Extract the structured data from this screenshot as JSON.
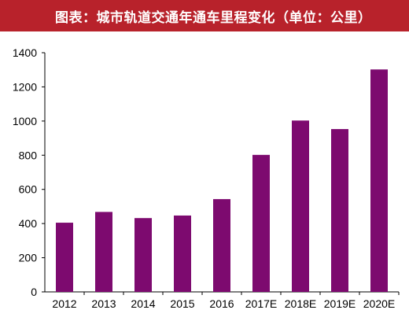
{
  "header": {
    "title": "图表：城市轨道交通年通车里程变化（单位：公里）",
    "background_color": "#b8222b",
    "text_color": "#ffffff"
  },
  "chart_data": {
    "type": "bar",
    "title": "图表：城市轨道交通年通车里程变化（单位：公里）",
    "xlabel": "",
    "ylabel": "",
    "categories": [
      "2012",
      "2013",
      "2014",
      "2015",
      "2016",
      "2017E",
      "2018E",
      "2019E",
      "2020E"
    ],
    "series": [
      {
        "values": [
          405,
          468,
          432,
          447,
          543,
          802,
          1003,
          953,
          1302
        ],
        "color": "#7d0a6f"
      }
    ],
    "ylim": [
      0,
      1400
    ],
    "yticks": [
      0,
      200,
      400,
      600,
      800,
      1000,
      1200,
      1400
    ],
    "grid": false,
    "legend": "none"
  }
}
